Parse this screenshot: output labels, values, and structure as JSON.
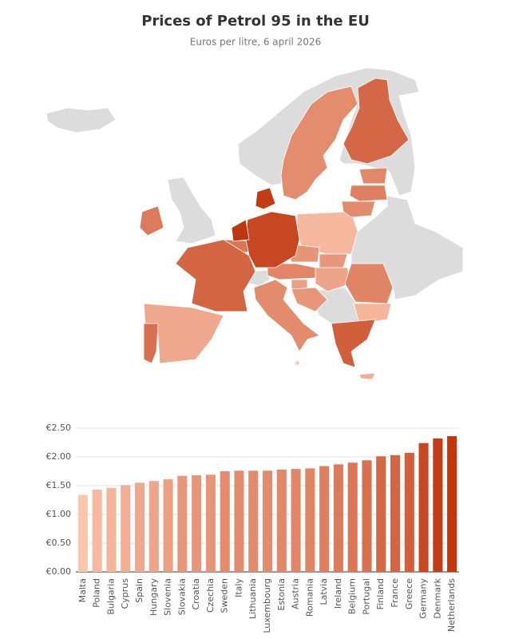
{
  "chart_data": {
    "type": "bar",
    "title": "Prices of Petrol 95 in the EU",
    "subtitle": "Euros per litre, 6 april 2026",
    "categories": [
      "Malta",
      "Poland",
      "Bulgaria",
      "Cyprus",
      "Spain",
      "Hungary",
      "Slovenia",
      "Slovakia",
      "Croatia",
      "Czechia",
      "Sweden",
      "Italy",
      "Lithuania",
      "Luxembourg",
      "Estonia",
      "Austria",
      "Romania",
      "Latvia",
      "Ireland",
      "Belgium",
      "Portugal",
      "Finland",
      "France",
      "Greece",
      "Germany",
      "Denmark",
      "Netherlands"
    ],
    "values": [
      1.34,
      1.43,
      1.46,
      1.51,
      1.55,
      1.58,
      1.61,
      1.67,
      1.68,
      1.69,
      1.75,
      1.76,
      1.76,
      1.76,
      1.78,
      1.79,
      1.8,
      1.84,
      1.87,
      1.9,
      1.94,
      2.01,
      2.03,
      2.07,
      2.24,
      2.32,
      2.36
    ],
    "color_scale": [
      "#fbc6ae",
      "#c0360f"
    ],
    "ylim": [
      0,
      2.5
    ],
    "yticks": [
      {
        "value": 0,
        "label": "€0.00"
      },
      {
        "value": 0.5,
        "label": "€0.50"
      },
      {
        "value": 1,
        "label": "€1.00"
      },
      {
        "value": 1.5,
        "label": "€1.50"
      },
      {
        "value": 2,
        "label": "€2.00"
      },
      {
        "value": 2.5,
        "label": "€2.50"
      }
    ],
    "grid": true
  }
}
